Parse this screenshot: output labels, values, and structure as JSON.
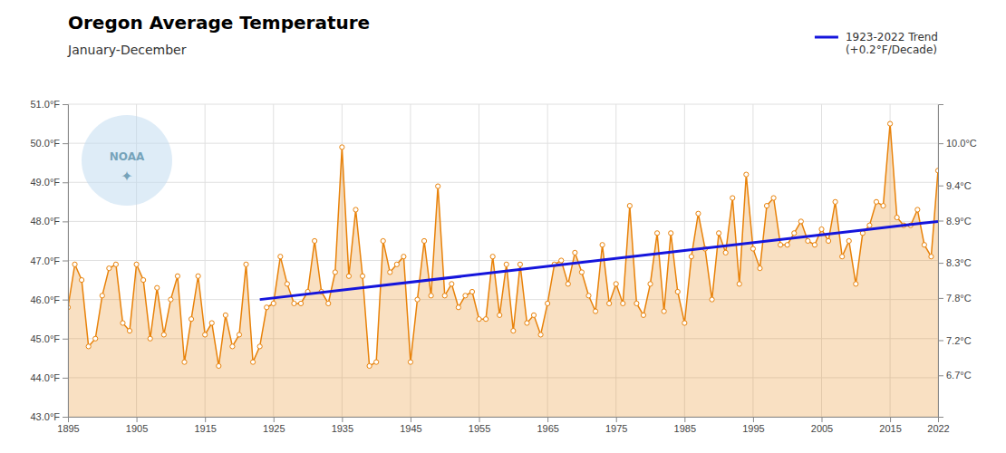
{
  "chart_data": {
    "type": "line",
    "title": "Oregon Average Temperature",
    "subtitle": "January-December",
    "x": [
      1895,
      1896,
      1897,
      1898,
      1899,
      1900,
      1901,
      1902,
      1903,
      1904,
      1905,
      1906,
      1907,
      1908,
      1909,
      1910,
      1911,
      1912,
      1913,
      1914,
      1915,
      1916,
      1917,
      1918,
      1919,
      1920,
      1921,
      1922,
      1923,
      1924,
      1925,
      1926,
      1927,
      1928,
      1929,
      1930,
      1931,
      1932,
      1933,
      1934,
      1935,
      1936,
      1937,
      1938,
      1939,
      1940,
      1941,
      1942,
      1943,
      1944,
      1945,
      1946,
      1947,
      1948,
      1949,
      1950,
      1951,
      1952,
      1953,
      1954,
      1955,
      1956,
      1957,
      1958,
      1959,
      1960,
      1961,
      1962,
      1963,
      1964,
      1965,
      1966,
      1967,
      1968,
      1969,
      1970,
      1971,
      1972,
      1973,
      1974,
      1975,
      1976,
      1977,
      1978,
      1979,
      1980,
      1981,
      1982,
      1983,
      1984,
      1985,
      1986,
      1987,
      1988,
      1989,
      1990,
      1991,
      1992,
      1993,
      1994,
      1995,
      1996,
      1997,
      1998,
      1999,
      2000,
      2001,
      2002,
      2003,
      2004,
      2005,
      2006,
      2007,
      2008,
      2009,
      2010,
      2011,
      2012,
      2013,
      2014,
      2015,
      2016,
      2017,
      2018,
      2019,
      2020,
      2021,
      2022
    ],
    "series": [
      {
        "type": "area",
        "marker": "circle",
        "color": "#E8820A",
        "values": [
          45.8,
          46.9,
          46.5,
          44.8,
          45.0,
          46.1,
          46.8,
          46.9,
          45.4,
          45.2,
          46.9,
          46.5,
          45.0,
          46.3,
          45.1,
          46.0,
          46.6,
          44.4,
          45.5,
          46.6,
          45.1,
          45.4,
          44.3,
          45.6,
          44.8,
          45.1,
          46.9,
          44.4,
          44.8,
          45.8,
          45.9,
          47.1,
          46.4,
          45.9,
          45.9,
          46.2,
          47.5,
          46.2,
          45.9,
          46.7,
          49.9,
          46.6,
          48.3,
          46.6,
          44.3,
          44.4,
          47.5,
          46.7,
          46.9,
          47.1,
          44.4,
          46.0,
          47.5,
          46.1,
          48.9,
          46.1,
          46.4,
          45.8,
          46.1,
          46.2,
          45.5,
          45.5,
          47.1,
          45.6,
          46.9,
          45.2,
          46.9,
          45.4,
          45.6,
          45.1,
          45.9,
          46.9,
          47.0,
          46.4,
          47.2,
          46.7,
          46.1,
          45.7,
          47.4,
          45.9,
          46.4,
          45.9,
          48.4,
          45.9,
          45.6,
          46.4,
          47.7,
          45.7,
          47.7,
          46.2,
          45.4,
          47.1,
          48.2,
          47.3,
          46.0,
          47.7,
          47.2,
          48.6,
          46.4,
          49.2,
          47.3,
          46.8,
          48.4,
          48.6,
          47.4,
          47.4,
          47.7,
          48.0,
          47.5,
          47.4,
          47.8,
          47.5,
          48.5,
          47.1,
          47.5,
          46.4,
          47.7,
          47.9,
          48.5,
          48.4,
          50.5,
          48.1,
          47.9,
          47.9,
          48.3,
          47.4,
          47.1,
          49.3
        ]
      },
      {
        "type": "line",
        "name": "1923-2022 Trend\n(+0.2°F/Decade)",
        "color": "#1515DC",
        "x": [
          1923,
          2022
        ],
        "values": [
          46.0,
          48.0
        ]
      }
    ],
    "xlim": [
      1895,
      2022
    ],
    "xticks": [
      1895,
      1905,
      1915,
      1925,
      1935,
      1945,
      1955,
      1965,
      1975,
      1985,
      1995,
      2005,
      2015,
      2022
    ],
    "ylim": [
      43.0,
      51.0
    ],
    "yticks": [
      {
        "value": 43.0,
        "label": "43.0°F"
      },
      {
        "value": 44.0,
        "label": "44.0°F"
      },
      {
        "value": 45.0,
        "label": "45.0°F"
      },
      {
        "value": 46.0,
        "label": "46.0°F"
      },
      {
        "value": 47.0,
        "label": "47.0°F"
      },
      {
        "value": 48.0,
        "label": "48.0°F"
      },
      {
        "value": 49.0,
        "label": "49.0°F"
      },
      {
        "value": 50.0,
        "label": "50.0°F"
      },
      {
        "value": 51.0,
        "label": "51.0°F"
      }
    ],
    "y2lim": [
      43.0,
      51.0
    ],
    "y2ticks": [
      {
        "value": 44.06,
        "label": "6.7°C"
      },
      {
        "value": 44.96,
        "label": "7.2°C"
      },
      {
        "value": 46.04,
        "label": "7.8°C"
      },
      {
        "value": 46.94,
        "label": "8.3°C"
      },
      {
        "value": 48.02,
        "label": "8.9°C"
      },
      {
        "value": 48.92,
        "label": "9.4°C"
      },
      {
        "value": 50.0,
        "label": "10.0°C"
      }
    ],
    "grid": true,
    "legend": "upper right",
    "annotations": [
      "NOAA",
      "✦"
    ]
  }
}
